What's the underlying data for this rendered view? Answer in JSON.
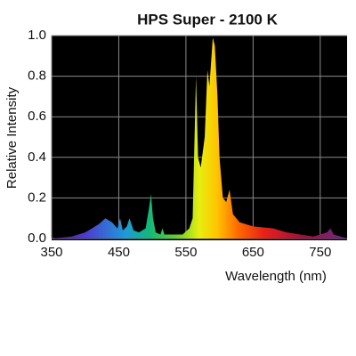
{
  "chart_data": {
    "type": "area",
    "title": "HPS Super - 2100 K",
    "x_label": "Wavelength (nm)",
    "y_label": "Relative Intensity",
    "x": [
      350,
      380,
      400,
      420,
      430,
      440,
      448,
      452,
      456,
      462,
      466,
      472,
      480,
      490,
      495,
      498,
      501,
      505,
      512,
      515,
      518,
      530,
      545,
      555,
      560,
      565,
      568,
      572,
      578,
      582,
      585,
      590,
      593,
      597,
      600,
      605,
      610,
      615,
      620,
      630,
      650,
      680,
      700,
      740,
      760,
      765,
      770,
      790
    ],
    "values": [
      0.0,
      0.01,
      0.03,
      0.07,
      0.1,
      0.08,
      0.05,
      0.1,
      0.04,
      0.06,
      0.1,
      0.04,
      0.03,
      0.05,
      0.15,
      0.22,
      0.1,
      0.03,
      0.02,
      0.05,
      0.02,
      0.02,
      0.02,
      0.05,
      0.1,
      0.8,
      0.4,
      0.35,
      0.5,
      0.83,
      0.75,
      0.99,
      0.95,
      0.7,
      0.4,
      0.2,
      0.18,
      0.24,
      0.12,
      0.08,
      0.06,
      0.05,
      0.03,
      0.01,
      0.03,
      0.05,
      0.02,
      0.0
    ],
    "xlim": [
      350,
      790
    ],
    "ylim": [
      0,
      1
    ],
    "xticks": [
      350,
      450,
      550,
      650,
      750
    ],
    "yticks": [
      {
        "value": 0,
        "label": "0.0"
      },
      0.2,
      0.4,
      0.6,
      0.8,
      {
        "value": 1,
        "label": "1.0"
      }
    ],
    "grid": true
  }
}
